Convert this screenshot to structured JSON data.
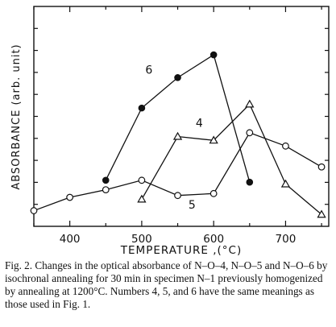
{
  "chart_data": {
    "type": "line",
    "xlabel": "TEMPERATURE ,(°C)",
    "ylabel": "ABSORBANCE (arb. unit)",
    "xlim": [
      350,
      760
    ],
    "ylim": [
      0,
      10
    ],
    "x_ticks": [
      "400",
      "500",
      "600",
      "700"
    ],
    "x_tick_values": [
      400,
      500,
      600,
      700
    ],
    "grid": false,
    "series": [
      {
        "name": "6",
        "marker": "filled-circle",
        "x": [
          450,
          500,
          550,
          600,
          650
        ],
        "y": [
          2.0,
          5.8,
          7.4,
          8.6,
          1.9
        ]
      },
      {
        "name": "4",
        "marker": "open-triangle",
        "x": [
          500,
          550,
          600,
          650,
          700,
          750
        ],
        "y": [
          1.0,
          4.3,
          4.1,
          6.0,
          1.8,
          0.2
        ]
      },
      {
        "name": "5",
        "marker": "open-circle",
        "x": [
          350,
          400,
          450,
          500,
          550,
          600,
          650,
          700,
          750
        ],
        "y": [
          0.4,
          1.1,
          1.5,
          2.0,
          1.2,
          1.3,
          4.5,
          3.8,
          2.7
        ]
      }
    ]
  },
  "caption": "Fig. 2.   Changes in the optical absorbance of N–O–4, N–O–5 and N–O–6 by isochronal annealing for 30 min in specimen N–1 previously homogenized by annealing at 1200°C. Numbers 4, 5, and 6 have the same meanings as those used in Fig. 1."
}
